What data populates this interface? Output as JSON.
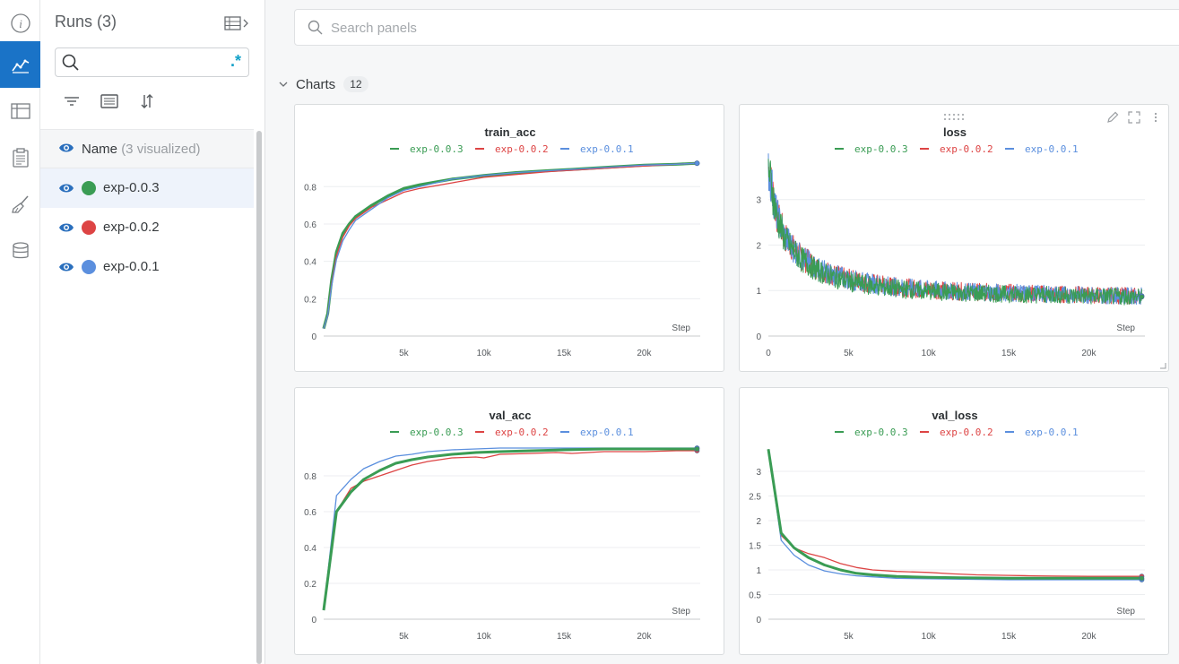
{
  "runs_panel": {
    "title": "Runs (3)",
    "search": {
      "value": "",
      "placeholder": "",
      "regex_label": ".*"
    },
    "name_header": {
      "label": "Name",
      "visualized": "(3 visualized)"
    },
    "runs": [
      {
        "name": "exp-0.0.3",
        "color": "#3a9c54",
        "selected": true
      },
      {
        "name": "exp-0.0.2",
        "color": "#dd4444",
        "selected": false
      },
      {
        "name": "exp-0.0.1",
        "color": "#5b8fde",
        "selected": false
      }
    ]
  },
  "rail": {
    "icons": [
      "info-icon",
      "charts-icon",
      "table-icon",
      "report-icon",
      "sweep-icon",
      "artifacts-icon"
    ],
    "active": "charts-icon"
  },
  "main": {
    "search": {
      "placeholder": "Search panels",
      "value": ""
    },
    "section": {
      "title": "Charts",
      "count": "12"
    }
  },
  "colors": {
    "exp-0.0.3": "#3a9c54",
    "exp-0.0.2": "#dd4444",
    "exp-0.0.1": "#5b8fde",
    "accent": "#1a73c7"
  },
  "chart_data": [
    {
      "id": "train_acc",
      "type": "line",
      "title": "train_acc",
      "xlabel": "Step",
      "ylabel": "",
      "xlim": [
        0,
        23500
      ],
      "ylim": [
        0,
        0.95
      ],
      "xticks": [
        5000,
        10000,
        15000,
        20000
      ],
      "xtick_labels": [
        "5k",
        "10k",
        "15k",
        "20k"
      ],
      "yticks": [
        0,
        0.2,
        0.4,
        0.6,
        0.8
      ],
      "ytick_labels": [
        "0",
        "0.2",
        "0.4",
        "0.6",
        "0.8"
      ],
      "grid": true,
      "legend": "top-center",
      "series": [
        {
          "name": "exp-0.0.3",
          "color": "#3a9c54",
          "width": 3.2,
          "x": [
            0,
            250,
            500,
            800,
            1200,
            1600,
            2000,
            3000,
            4000,
            5000,
            6000,
            8000,
            10000,
            12000,
            14000,
            16000,
            18000,
            20000,
            22000,
            23300
          ],
          "y": [
            0.04,
            0.12,
            0.3,
            0.45,
            0.55,
            0.6,
            0.64,
            0.7,
            0.75,
            0.79,
            0.81,
            0.84,
            0.86,
            0.875,
            0.885,
            0.895,
            0.905,
            0.915,
            0.92,
            0.925
          ]
        },
        {
          "name": "exp-0.0.2",
          "color": "#dd4444",
          "width": 1.3,
          "x": [
            0,
            250,
            500,
            800,
            1200,
            1600,
            2000,
            3000,
            4000,
            5000,
            6000,
            8000,
            10000,
            12000,
            14000,
            16000,
            18000,
            20000,
            22000,
            23300
          ],
          "y": [
            0.04,
            0.11,
            0.28,
            0.43,
            0.53,
            0.59,
            0.63,
            0.69,
            0.73,
            0.77,
            0.79,
            0.82,
            0.85,
            0.865,
            0.88,
            0.89,
            0.9,
            0.91,
            0.92,
            0.925
          ]
        },
        {
          "name": "exp-0.0.1",
          "color": "#5b8fde",
          "width": 1.3,
          "x": [
            0,
            250,
            500,
            800,
            1200,
            1600,
            2000,
            3000,
            4000,
            5000,
            6000,
            8000,
            10000,
            12000,
            14000,
            16000,
            18000,
            20000,
            22000,
            23300
          ],
          "y": [
            0.04,
            0.11,
            0.27,
            0.41,
            0.51,
            0.57,
            0.62,
            0.68,
            0.74,
            0.78,
            0.8,
            0.84,
            0.86,
            0.875,
            0.885,
            0.895,
            0.905,
            0.915,
            0.92,
            0.925
          ]
        }
      ]
    },
    {
      "id": "loss",
      "type": "line",
      "title": "loss",
      "xlabel": "Step",
      "ylabel": "",
      "xlim": [
        0,
        23500
      ],
      "ylim": [
        0,
        3.9
      ],
      "xticks": [
        0,
        5000,
        10000,
        15000,
        20000
      ],
      "xtick_labels": [
        "0",
        "5k",
        "10k",
        "15k",
        "20k"
      ],
      "yticks": [
        0,
        1,
        2,
        3
      ],
      "ytick_labels": [
        "0",
        "1",
        "2",
        "3"
      ],
      "grid": true,
      "legend": "top-center",
      "noisy": true,
      "series": [
        {
          "name": "exp-0.0.2",
          "color": "#dd4444",
          "width": 1.0,
          "x": [
            0,
            200,
            500,
            1000,
            1500,
            2000,
            3000,
            4000,
            5000,
            6000,
            8000,
            10000,
            12000,
            15000,
            18000,
            20000,
            23300
          ],
          "y": [
            3.7,
            3.3,
            2.7,
            2.2,
            1.95,
            1.75,
            1.5,
            1.35,
            1.25,
            1.18,
            1.08,
            1.02,
            0.98,
            0.95,
            0.92,
            0.9,
            0.88
          ]
        },
        {
          "name": "exp-0.0.1",
          "color": "#5b8fde",
          "width": 1.0,
          "x": [
            0,
            200,
            500,
            1000,
            1500,
            2000,
            3000,
            4000,
            5000,
            6000,
            8000,
            10000,
            12000,
            15000,
            18000,
            20000,
            23300
          ],
          "y": [
            3.7,
            3.3,
            2.7,
            2.2,
            1.95,
            1.75,
            1.5,
            1.35,
            1.25,
            1.18,
            1.08,
            1.02,
            0.98,
            0.95,
            0.92,
            0.9,
            0.88
          ]
        },
        {
          "name": "exp-0.0.3",
          "color": "#3a9c54",
          "width": 1.0,
          "x": [
            0,
            200,
            500,
            1000,
            1500,
            2000,
            3000,
            4000,
            5000,
            6000,
            8000,
            10000,
            12000,
            15000,
            18000,
            20000,
            23300
          ],
          "y": [
            3.7,
            3.3,
            2.65,
            2.15,
            1.9,
            1.7,
            1.45,
            1.3,
            1.2,
            1.13,
            1.04,
            0.98,
            0.95,
            0.92,
            0.9,
            0.88,
            0.86
          ]
        }
      ]
    },
    {
      "id": "val_acc",
      "type": "line",
      "title": "val_acc",
      "xlabel": "Step",
      "ylabel": "",
      "xlim": [
        0,
        23500
      ],
      "ylim": [
        0,
        0.99
      ],
      "xticks": [
        5000,
        10000,
        15000,
        20000
      ],
      "xtick_labels": [
        "5k",
        "10k",
        "15k",
        "20k"
      ],
      "yticks": [
        0,
        0.2,
        0.4,
        0.6,
        0.8
      ],
      "ytick_labels": [
        "0",
        "0.2",
        "0.4",
        "0.6",
        "0.8"
      ],
      "grid": true,
      "legend": "top-center",
      "series": [
        {
          "name": "exp-0.0.2",
          "color": "#dd4444",
          "width": 1.3,
          "x": [
            0,
            800,
            1700,
            2500,
            3500,
            4500,
            5500,
            6500,
            8000,
            9500,
            10000,
            11000,
            13000,
            14500,
            15500,
            17500,
            20000,
            22000,
            23300
          ],
          "y": [
            0.05,
            0.6,
            0.73,
            0.77,
            0.8,
            0.83,
            0.86,
            0.88,
            0.9,
            0.905,
            0.9,
            0.92,
            0.925,
            0.93,
            0.925,
            0.935,
            0.935,
            0.94,
            0.94
          ]
        },
        {
          "name": "exp-0.0.1",
          "color": "#5b8fde",
          "width": 1.3,
          "x": [
            0,
            800,
            1700,
            2500,
            3500,
            4500,
            5500,
            6500,
            8000,
            9500,
            11000,
            13000,
            15000,
            17500,
            20000,
            22000,
            23300
          ],
          "y": [
            0.05,
            0.69,
            0.78,
            0.84,
            0.88,
            0.91,
            0.92,
            0.935,
            0.945,
            0.95,
            0.955,
            0.955,
            0.955,
            0.955,
            0.955,
            0.955,
            0.955
          ]
        },
        {
          "name": "exp-0.0.3",
          "color": "#3a9c54",
          "width": 3.0,
          "x": [
            0,
            800,
            1700,
            2500,
            3500,
            4500,
            5500,
            6500,
            8000,
            9500,
            11000,
            13000,
            15000,
            17500,
            20000,
            22000,
            23300
          ],
          "y": [
            0.05,
            0.6,
            0.71,
            0.78,
            0.83,
            0.87,
            0.89,
            0.905,
            0.92,
            0.93,
            0.935,
            0.94,
            0.945,
            0.95,
            0.95,
            0.95,
            0.95
          ]
        }
      ]
    },
    {
      "id": "val_loss",
      "type": "line",
      "title": "val_loss",
      "xlabel": "Step",
      "ylabel": "",
      "xlim": [
        0,
        23500
      ],
      "ylim": [
        0,
        3.6
      ],
      "xticks": [
        5000,
        10000,
        15000,
        20000
      ],
      "xtick_labels": [
        "5k",
        "10k",
        "15k",
        "20k"
      ],
      "yticks": [
        0,
        0.5,
        1,
        1.5,
        2,
        2.5,
        3
      ],
      "ytick_labels": [
        "0",
        "0.5",
        "1",
        "1.5",
        "2",
        "2.5",
        "3"
      ],
      "grid": true,
      "legend": "top-center",
      "series": [
        {
          "name": "exp-0.0.2",
          "color": "#dd4444",
          "width": 1.3,
          "x": [
            0,
            800,
            1600,
            2500,
            3500,
            4500,
            5500,
            6500,
            8000,
            10000,
            11500,
            13000,
            15000,
            16500,
            18000,
            20000,
            22000,
            23300
          ],
          "y": [
            3.45,
            1.7,
            1.45,
            1.33,
            1.25,
            1.13,
            1.05,
            1.0,
            0.97,
            0.95,
            0.92,
            0.9,
            0.89,
            0.88,
            0.875,
            0.87,
            0.87,
            0.87
          ]
        },
        {
          "name": "exp-0.0.1",
          "color": "#5b8fde",
          "width": 1.3,
          "x": [
            0,
            800,
            1600,
            2500,
            3500,
            4500,
            5500,
            6500,
            8000,
            10000,
            12000,
            15000,
            18000,
            20000,
            23300
          ],
          "y": [
            3.45,
            1.6,
            1.3,
            1.1,
            0.98,
            0.92,
            0.88,
            0.86,
            0.83,
            0.82,
            0.81,
            0.8,
            0.8,
            0.8,
            0.8
          ]
        },
        {
          "name": "exp-0.0.3",
          "color": "#3a9c54",
          "width": 3.0,
          "x": [
            0,
            800,
            1600,
            2500,
            3500,
            4500,
            5500,
            6500,
            8000,
            10000,
            12000,
            15000,
            18000,
            20000,
            23300
          ],
          "y": [
            3.45,
            1.75,
            1.45,
            1.25,
            1.1,
            1.0,
            0.93,
            0.9,
            0.87,
            0.85,
            0.84,
            0.83,
            0.83,
            0.83,
            0.83
          ]
        }
      ]
    }
  ]
}
